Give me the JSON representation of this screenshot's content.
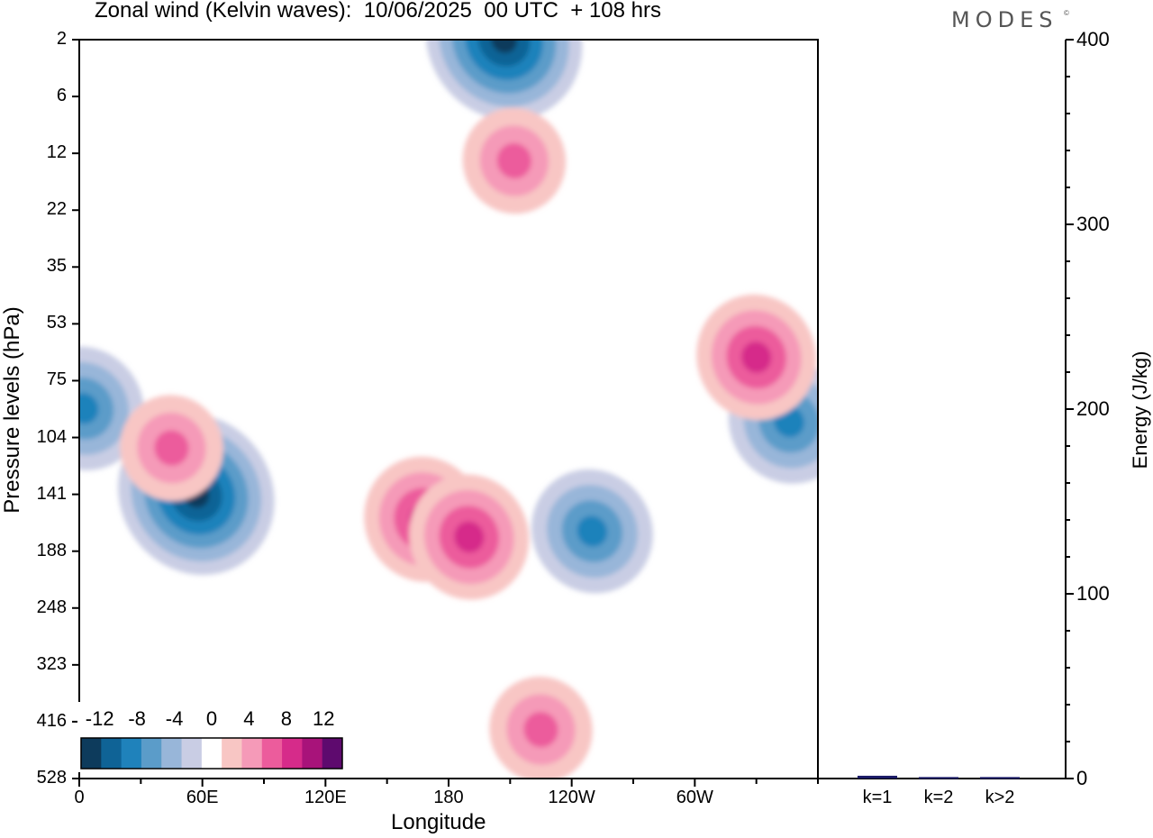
{
  "header": {
    "title": "Zonal wind (Kelvin waves):  10/06/2025  00 UTC  + 108 hrs",
    "brand": "MODES",
    "brand_mark": "©"
  },
  "chart_data": [
    {
      "type": "heatmap",
      "title": "Zonal wind (Kelvin waves):  10/06/2025  00 UTC  + 108 hrs",
      "xlabel": "Longitude",
      "ylabel": "Pressure levels (hPa)",
      "x_ticks": [
        "0",
        "60E",
        "120E",
        "180",
        "120W",
        "60W"
      ],
      "x_tick_degrees": [
        0,
        60,
        120,
        180,
        240,
        300
      ],
      "xlim": [
        0,
        360
      ],
      "y_ticks": [
        "2",
        "6",
        "12",
        "22",
        "35",
        "53",
        "75",
        "104",
        "141",
        "188",
        "248",
        "323",
        "416",
        "528"
      ],
      "ylim_hPa": [
        2,
        528
      ],
      "colorbar": {
        "tick_labels": [
          "-12",
          "-8",
          "-4",
          "0",
          "4",
          "8",
          "12"
        ],
        "levels": [
          -14,
          -12,
          -10,
          -8,
          -6,
          -4,
          -2,
          2,
          4,
          6,
          8,
          10,
          12,
          14
        ],
        "colors": [
          "#0d3b5c",
          "#0f6396",
          "#1f82bb",
          "#5b9cc9",
          "#98b6d9",
          "#c9cde4",
          "#ffffff",
          "#f8c6c4",
          "#f59ab8",
          "#ec5c9c",
          "#d62b8a",
          "#a8137a",
          "#5e0a6e"
        ]
      },
      "features": [
        {
          "sign": "negative",
          "peak": -12,
          "lon": 57,
          "hPa": 141
        },
        {
          "sign": "negative",
          "peak": -12,
          "lon": 207,
          "hPa": 2
        },
        {
          "sign": "negative",
          "peak": -8,
          "lon": 346,
          "hPa": 95
        },
        {
          "sign": "negative",
          "peak": -8,
          "lon": 250,
          "hPa": 170
        },
        {
          "sign": "negative",
          "peak": -8,
          "lon": 2,
          "hPa": 88
        },
        {
          "sign": "positive",
          "peak": 8,
          "lon": 168,
          "hPa": 160
        },
        {
          "sign": "positive",
          "peak": 8,
          "lon": 190,
          "hPa": 175
        },
        {
          "sign": "positive",
          "peak": 8,
          "lon": 330,
          "hPa": 65
        },
        {
          "sign": "positive",
          "peak": 6,
          "lon": 212,
          "hPa": 13
        },
        {
          "sign": "positive",
          "peak": 6,
          "lon": 45,
          "hPa": 110
        },
        {
          "sign": "positive",
          "peak": 6,
          "lon": 225,
          "hPa": 430
        }
      ]
    },
    {
      "type": "bar",
      "categories": [
        "k=1",
        "k=2",
        "k>2"
      ],
      "values": [
        1.5,
        0.8,
        0.8
      ],
      "ylabel": "Energy (J/kg)",
      "ylim": [
        0,
        400
      ],
      "y_ticks": [
        "0",
        "100",
        "200",
        "300",
        "400"
      ],
      "bar_color": "#1a1a66"
    }
  ]
}
